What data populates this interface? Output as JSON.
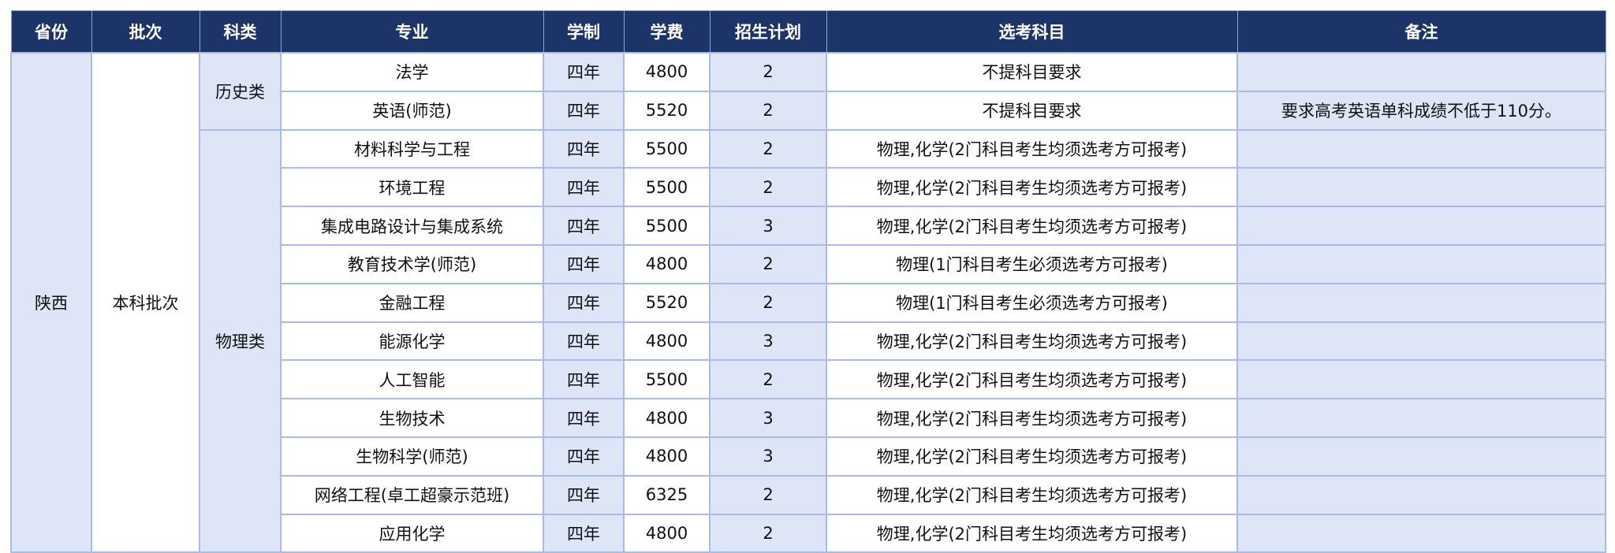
{
  "headers": [
    "省份",
    "批次",
    "科类",
    "专业",
    "学制",
    "学费",
    "招生计划",
    "选考科目",
    "备注"
  ],
  "province": "陕西",
  "batch": "本科批次",
  "categories": [
    "历史类",
    "物理类"
  ],
  "rows": [
    {
      "major": "法学",
      "duration": "四年",
      "fee": "4800",
      "plan": "2",
      "subjects": "不提科目要求",
      "note": ""
    },
    {
      "major": "英语(师范)",
      "duration": "四年",
      "fee": "5520",
      "plan": "2",
      "subjects": "不提科目要求",
      "note": "要求高考英语单科成绩不低于110分。"
    },
    {
      "major": "材料科学与工程",
      "duration": "四年",
      "fee": "5500",
      "plan": "2",
      "subjects": "物理,化学(2门科目考生均须选考方可报考)",
      "note": ""
    },
    {
      "major": "环境工程",
      "duration": "四年",
      "fee": "5500",
      "plan": "2",
      "subjects": "物理,化学(2门科目考生均须选考方可报考)",
      "note": ""
    },
    {
      "major": "集成电路设计与集成系统",
      "duration": "四年",
      "fee": "5500",
      "plan": "3",
      "subjects": "物理,化学(2门科目考生均须选考方可报考)",
      "note": ""
    },
    {
      "major": "教育技术学(师范)",
      "duration": "四年",
      "fee": "4800",
      "plan": "2",
      "subjects": "物理(1门科目考生必须选考方可报考)",
      "note": ""
    },
    {
      "major": "金融工程",
      "duration": "四年",
      "fee": "5520",
      "plan": "2",
      "subjects": "物理(1门科目考生必须选考方可报考)",
      "note": ""
    },
    {
      "major": "能源化学",
      "duration": "四年",
      "fee": "4800",
      "plan": "3",
      "subjects": "物理,化学(2门科目考生均须选考方可报考)",
      "note": ""
    },
    {
      "major": "人工智能",
      "duration": "四年",
      "fee": "5500",
      "plan": "2",
      "subjects": "物理,化学(2门科目考生均须选考方可报考)",
      "note": ""
    },
    {
      "major": "生物技术",
      "duration": "四年",
      "fee": "4800",
      "plan": "3",
      "subjects": "物理,化学(2门科目考生均须选考方可报考)",
      "note": ""
    },
    {
      "major": "生物科学(师范)",
      "duration": "四年",
      "fee": "4800",
      "plan": "3",
      "subjects": "物理,化学(2门科目考生均须选考方可报考)",
      "note": ""
    },
    {
      "major": "网络工程(卓工超豪示范班)",
      "duration": "四年",
      "fee": "6325",
      "plan": "2",
      "subjects": "物理,化学(2门科目考生均须选考方可报考)",
      "note": ""
    },
    {
      "major": "应用化学",
      "duration": "四年",
      "fee": "4800",
      "plan": "2",
      "subjects": "物理,化学(2门科目考生均须选考方可报考)",
      "note": ""
    }
  ]
}
